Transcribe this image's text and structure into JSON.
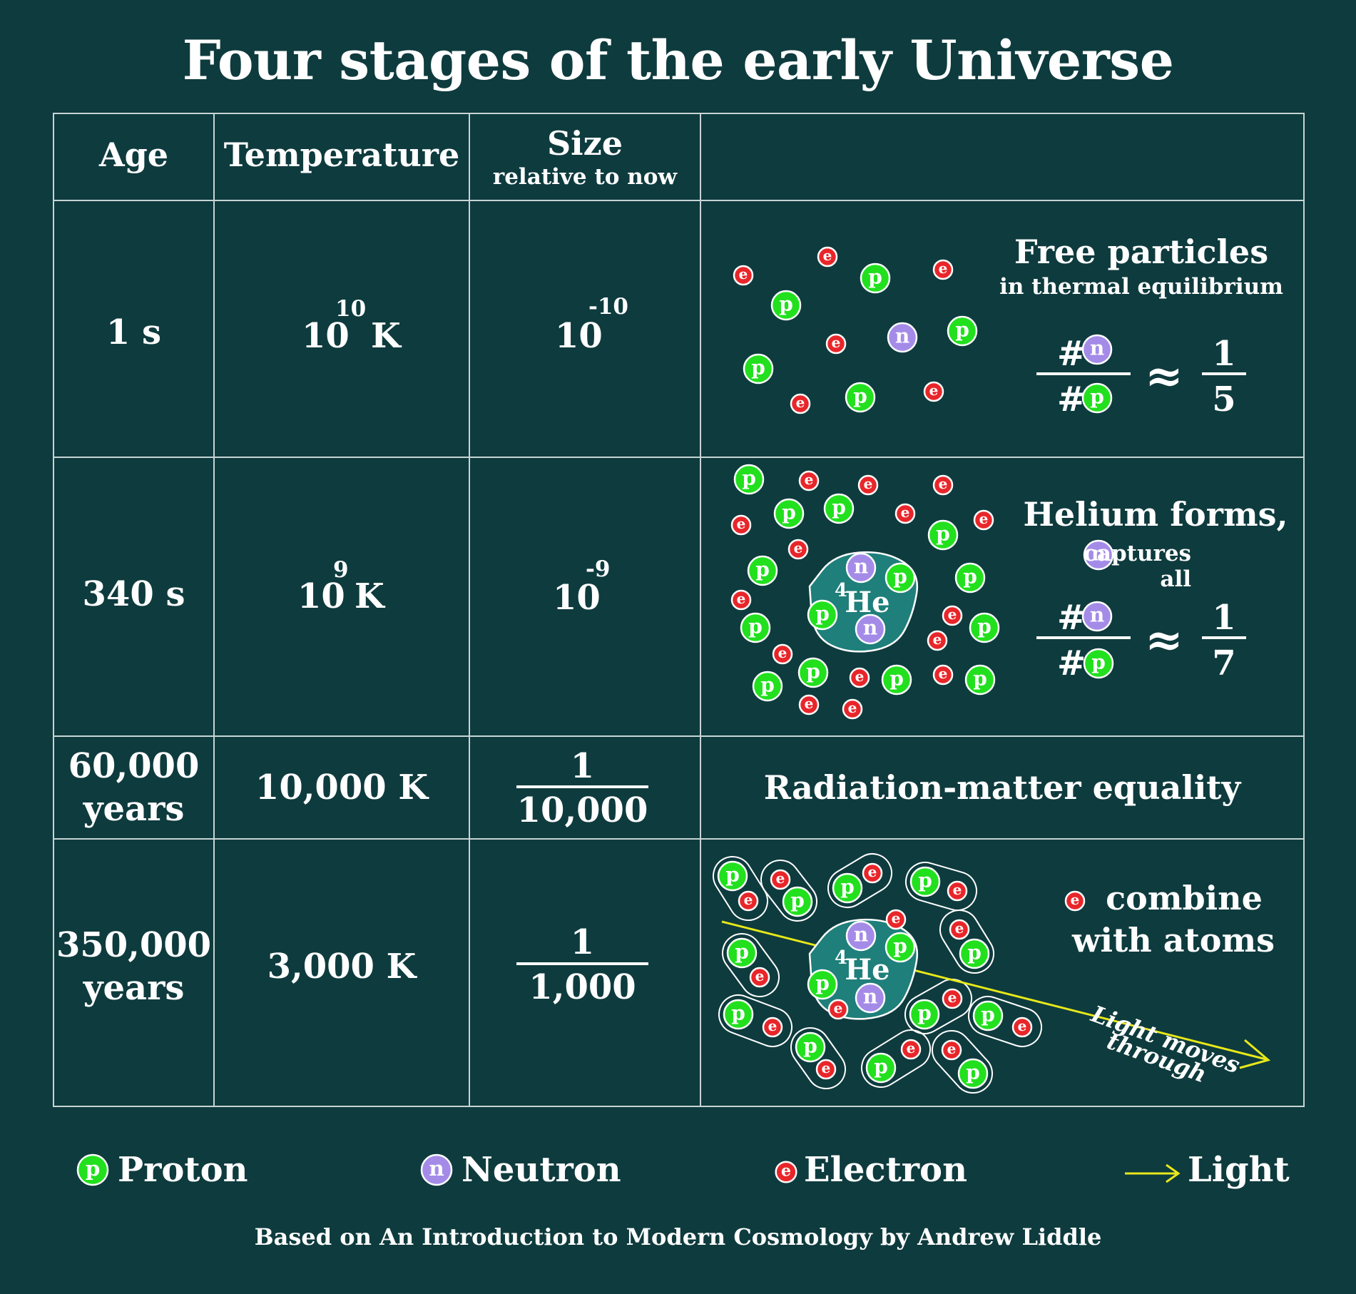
{
  "title": "Four stages of the early Universe",
  "headers": {
    "age": "Age",
    "temperature": "Temperature",
    "size": "Size",
    "size_sub": "relative to now"
  },
  "rows": [
    {
      "age": "1 s",
      "temp_base": "10",
      "temp_exp": "10",
      "temp_unit": "K",
      "size_base": "10",
      "size_exp": "-10",
      "desc_title": "Free particles",
      "desc_sub": "in thermal equilibrium",
      "ratio_num": "1",
      "ratio_den": "5"
    },
    {
      "age": "340 s",
      "temp_base": "10",
      "temp_exp": "9",
      "temp_unit": "K",
      "size_base": "10",
      "size_exp": "-9",
      "desc_title": "Helium forms,",
      "desc_sub": "captures all",
      "ratio_num": "1",
      "ratio_den": "7",
      "nucleus": "He",
      "nucleus_mass": "4"
    },
    {
      "age_line1": "60,000",
      "age_line2": "years",
      "temp": "10,000 K",
      "size_num": "1",
      "size_den": "10,000",
      "desc_title": "Radiation-matter equality"
    },
    {
      "age_line1": "350,000",
      "age_line2": "years",
      "temp": "3,000 K",
      "size_num": "1",
      "size_den": "1,000",
      "desc_title_line1": "combine",
      "desc_title_line2": "with atoms",
      "light_label_line1": "Light moves",
      "light_label_line2": "through",
      "nucleus": "He",
      "nucleus_mass": "4"
    }
  ],
  "symbols": {
    "count": "#",
    "approx": "≈",
    "proton": "p",
    "neutron": "n",
    "electron": "e"
  },
  "legend": {
    "proton": "Proton",
    "neutron": "Neutron",
    "electron": "Electron",
    "light": "Light"
  },
  "credit": "Based on An Introduction to Modern Cosmology by Andrew Liddle",
  "colors": {
    "background": "#0e3b3e",
    "proton": "#22e01e",
    "neutron": "#a48be8",
    "electron": "#e8262a",
    "light": "#e8e81a",
    "nucleus": "#1f7f7a"
  }
}
